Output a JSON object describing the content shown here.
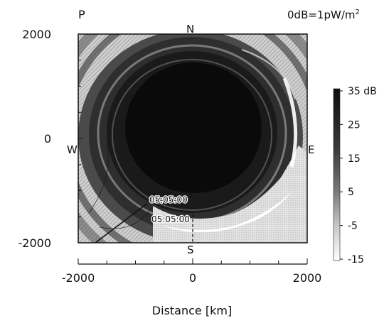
{
  "panel_label": "P",
  "reference_note": "0dB=1pW/m",
  "reference_note_exponent": "2",
  "chart_data": {
    "type": "heatmap",
    "title": "",
    "xlabel": "Distance [km]",
    "ylabel": "",
    "xlim": [
      -2000,
      2000
    ],
    "ylim": [
      -2000,
      2000
    ],
    "x_ticks": [
      "-2000",
      "0",
      "2000"
    ],
    "y_ticks": [
      "2000",
      "0",
      "-2000"
    ],
    "compass": {
      "north": "N",
      "south": "S",
      "east": "E",
      "west": "W"
    },
    "colorbar": {
      "unit": "dB",
      "top_label": "35 dB",
      "labels": [
        "35 dB",
        "25",
        "15",
        "5",
        "-5",
        "-15"
      ],
      "levels": [
        35,
        25,
        15,
        5,
        -5,
        -15
      ],
      "colors": {
        "high": "#0d0d0d",
        "low": "#ffffff"
      }
    },
    "ray_path": {
      "times": [
        "05:05:00",
        "05:05:00"
      ],
      "points_km": [
        [
          -1700,
          -2000
        ],
        [
          -800,
          -1250
        ]
      ]
    },
    "dashed_line_km": [
      [
        0,
        -1450
      ],
      [
        0,
        -2000
      ]
    ],
    "field_description_levels_db": [
      35,
      25,
      15,
      5,
      -5,
      -15
    ]
  }
}
